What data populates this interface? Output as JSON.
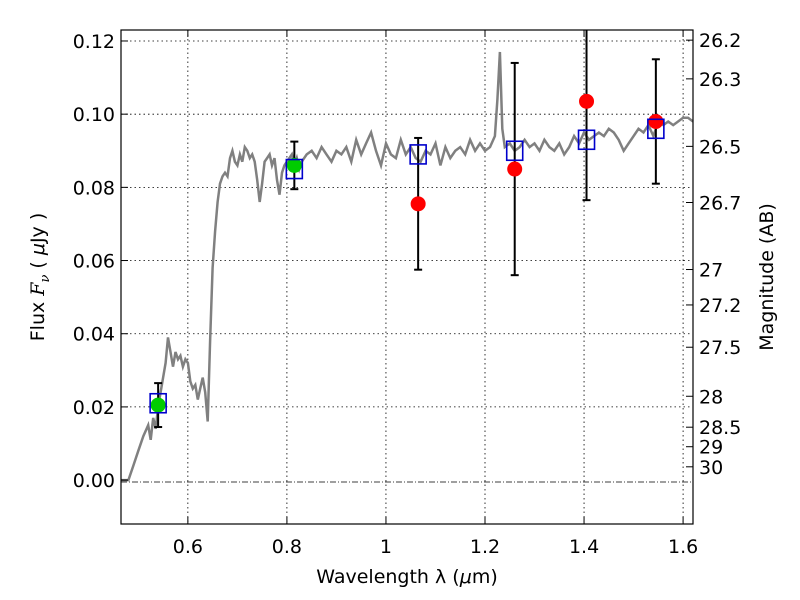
{
  "chart_data": {
    "type": "scatter",
    "xlabel_prefix": "Wavelength  λ (",
    "xlabel_mu": "μ",
    "xlabel_suffix": "m)",
    "ylabel_prefix": "Flux  ",
    "ylabel_F": "F",
    "ylabel_sub": "ν",
    "ylabel_paren_open": "  (  ",
    "ylabel_mu": "μ",
    "ylabel_suffix": "Jy )",
    "y2label": "Magnitude (AB)",
    "xlim": [
      0.465,
      1.62
    ],
    "ylim": [
      -0.012,
      0.123
    ],
    "xticks": [
      {
        "value": 0.6,
        "label": "0.6"
      },
      {
        "value": 0.8,
        "label": "0.8"
      },
      {
        "value": 1.0,
        "label": "1"
      },
      {
        "value": 1.2,
        "label": "1.2"
      },
      {
        "value": 1.4,
        "label": "1.4"
      },
      {
        "value": 1.6,
        "label": "1.6"
      }
    ],
    "yticks": [
      {
        "value": 0.0,
        "label": "0.00"
      },
      {
        "value": 0.02,
        "label": "0.02"
      },
      {
        "value": 0.04,
        "label": "0.04"
      },
      {
        "value": 0.06,
        "label": "0.06"
      },
      {
        "value": 0.08,
        "label": "0.08"
      },
      {
        "value": 0.1,
        "label": "0.10"
      },
      {
        "value": 0.12,
        "label": "0.12"
      }
    ],
    "mag_ticks": [
      {
        "value": 26.2,
        "label": "26.2"
      },
      {
        "value": 26.3,
        "label": "26.3"
      },
      {
        "value": 26.5,
        "label": "26.5"
      },
      {
        "value": 26.7,
        "label": "26.7"
      },
      {
        "value": 27.0,
        "label": "27"
      },
      {
        "value": 27.2,
        "label": "27.2"
      },
      {
        "value": 27.5,
        "label": "27.5"
      },
      {
        "value": 28.0,
        "label": "28"
      },
      {
        "value": 28.5,
        "label": "28.5"
      },
      {
        "value": 29.0,
        "label": "29"
      },
      {
        "value": 30.0,
        "label": "30"
      }
    ],
    "model_color": "#808080",
    "model_spectrum": {
      "x": [
        0.465,
        0.48,
        0.49,
        0.5,
        0.51,
        0.52,
        0.525,
        0.53,
        0.535,
        0.54,
        0.545,
        0.55,
        0.555,
        0.56,
        0.565,
        0.57,
        0.575,
        0.58,
        0.585,
        0.59,
        0.595,
        0.6,
        0.605,
        0.61,
        0.615,
        0.62,
        0.625,
        0.63,
        0.635,
        0.64,
        0.645,
        0.648,
        0.65,
        0.655,
        0.66,
        0.665,
        0.67,
        0.675,
        0.68,
        0.685,
        0.69,
        0.695,
        0.7,
        0.705,
        0.71,
        0.715,
        0.72,
        0.725,
        0.73,
        0.735,
        0.74,
        0.745,
        0.75,
        0.755,
        0.76,
        0.765,
        0.77,
        0.775,
        0.78,
        0.785,
        0.79,
        0.795,
        0.8,
        0.81,
        0.815,
        0.82,
        0.825,
        0.83,
        0.835,
        0.84,
        0.85,
        0.86,
        0.87,
        0.88,
        0.89,
        0.9,
        0.91,
        0.92,
        0.93,
        0.94,
        0.95,
        0.96,
        0.97,
        0.98,
        0.99,
        1.0,
        1.01,
        1.02,
        1.03,
        1.04,
        1.05,
        1.06,
        1.07,
        1.08,
        1.09,
        1.1,
        1.11,
        1.12,
        1.13,
        1.14,
        1.15,
        1.16,
        1.17,
        1.18,
        1.19,
        1.2,
        1.21,
        1.22,
        1.225,
        1.23,
        1.235,
        1.24,
        1.25,
        1.26,
        1.27,
        1.28,
        1.29,
        1.3,
        1.31,
        1.32,
        1.33,
        1.34,
        1.35,
        1.36,
        1.37,
        1.38,
        1.39,
        1.4,
        1.41,
        1.42,
        1.43,
        1.44,
        1.45,
        1.46,
        1.47,
        1.48,
        1.49,
        1.5,
        1.51,
        1.52,
        1.53,
        1.54,
        1.55,
        1.56,
        1.57,
        1.58,
        1.59,
        1.6,
        1.61,
        1.62
      ],
      "y": [
        0.0,
        0.0,
        0.004,
        0.008,
        0.012,
        0.015,
        0.011,
        0.017,
        0.014,
        0.02,
        0.024,
        0.028,
        0.032,
        0.039,
        0.035,
        0.031,
        0.035,
        0.033,
        0.034,
        0.031,
        0.033,
        0.032,
        0.027,
        0.025,
        0.026,
        0.022,
        0.025,
        0.028,
        0.024,
        0.016,
        0.038,
        0.05,
        0.058,
        0.068,
        0.076,
        0.081,
        0.083,
        0.084,
        0.083,
        0.088,
        0.09,
        0.087,
        0.086,
        0.089,
        0.087,
        0.091,
        0.09,
        0.088,
        0.089,
        0.087,
        0.082,
        0.076,
        0.081,
        0.087,
        0.088,
        0.089,
        0.086,
        0.088,
        0.082,
        0.078,
        0.084,
        0.086,
        0.087,
        0.089,
        0.086,
        0.088,
        0.085,
        0.087,
        0.088,
        0.089,
        0.09,
        0.088,
        0.091,
        0.089,
        0.087,
        0.09,
        0.089,
        0.091,
        0.087,
        0.093,
        0.089,
        0.092,
        0.095,
        0.09,
        0.086,
        0.092,
        0.089,
        0.088,
        0.093,
        0.089,
        0.091,
        0.088,
        0.087,
        0.09,
        0.089,
        0.092,
        0.086,
        0.091,
        0.088,
        0.09,
        0.091,
        0.089,
        0.093,
        0.09,
        0.092,
        0.09,
        0.091,
        0.094,
        0.104,
        0.117,
        0.096,
        0.091,
        0.092,
        0.09,
        0.091,
        0.093,
        0.091,
        0.092,
        0.09,
        0.093,
        0.091,
        0.09,
        0.092,
        0.089,
        0.091,
        0.094,
        0.092,
        0.095,
        0.093,
        0.094,
        0.095,
        0.094,
        0.096,
        0.095,
        0.093,
        0.09,
        0.092,
        0.094,
        0.096,
        0.095,
        0.097,
        0.094,
        0.098,
        0.097,
        0.098,
        0.097,
        0.098,
        0.099,
        0.099,
        0.098
      ]
    },
    "boxes": {
      "color": "#0000cc",
      "points": [
        {
          "x": 0.54,
          "y": 0.021
        },
        {
          "x": 0.815,
          "y": 0.085
        },
        {
          "x": 1.065,
          "y": 0.089
        },
        {
          "x": 1.26,
          "y": 0.09
        },
        {
          "x": 1.405,
          "y": 0.093
        },
        {
          "x": 1.545,
          "y": 0.096
        }
      ]
    },
    "observed": [
      {
        "x": 0.54,
        "y": 0.0205,
        "err": 0.006,
        "color": "#00cc00"
      },
      {
        "x": 0.815,
        "y": 0.086,
        "err": 0.0065,
        "color": "#00cc00"
      },
      {
        "x": 1.065,
        "y": 0.0755,
        "err": 0.018,
        "color": "#ff0000"
      },
      {
        "x": 1.26,
        "y": 0.085,
        "err": 0.029,
        "color": "#ff0000"
      },
      {
        "x": 1.405,
        "y": 0.1035,
        "err": 0.027,
        "color": "#ff0000"
      },
      {
        "x": 1.545,
        "y": 0.098,
        "err": 0.017,
        "color": "#ff0000"
      }
    ]
  }
}
